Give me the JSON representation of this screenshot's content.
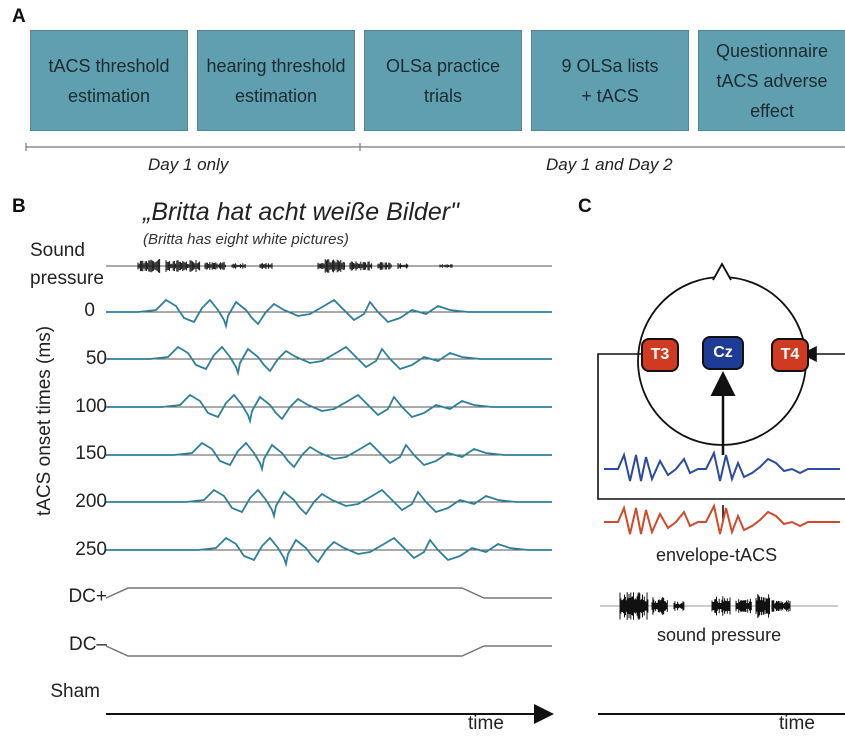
{
  "panel_a": {
    "letter": "A",
    "steps": [
      {
        "text": "tACS threshold\nestimation"
      },
      {
        "text": "hearing threshold\nestimation"
      },
      {
        "text": "OLSa practice\ntrials"
      },
      {
        "text": "9 OLSa lists\n+ tACS"
      },
      {
        "text": "Questionnaire\ntACS adverse effect"
      }
    ],
    "timeline": {
      "day1": "Day 1 only",
      "both": "Day 1 and Day 2"
    }
  },
  "panel_b": {
    "letter": "B",
    "sentence": "„Britta hat acht weiße Bilder\"",
    "translation": "(Britta has eight white pictures)",
    "sound_label_1": "Sound",
    "sound_label_2": "pressure",
    "y_axis_title": "tACS onset times (ms)",
    "onset_rows": [
      "0",
      "50",
      "100",
      "150",
      "200",
      "250"
    ],
    "dc_plus": "DC+",
    "dc_minus": "DC–",
    "sham": "Sham",
    "time_label": "time"
  },
  "panel_c": {
    "letter": "C",
    "electrodes": {
      "left": "T3",
      "center": "Cz",
      "right": "T4"
    },
    "envelope_label": "envelope-tACS",
    "sound_label": "sound pressure",
    "time_label": "time"
  },
  "colors": {
    "box_fill": "#5f9fb0",
    "wave_teal": "#2e7f9a",
    "electrode_red": "#d03a20",
    "electrode_blue": "#1e3c96",
    "trace_blue": "#2c4aa0",
    "trace_red": "#d04a2c"
  }
}
